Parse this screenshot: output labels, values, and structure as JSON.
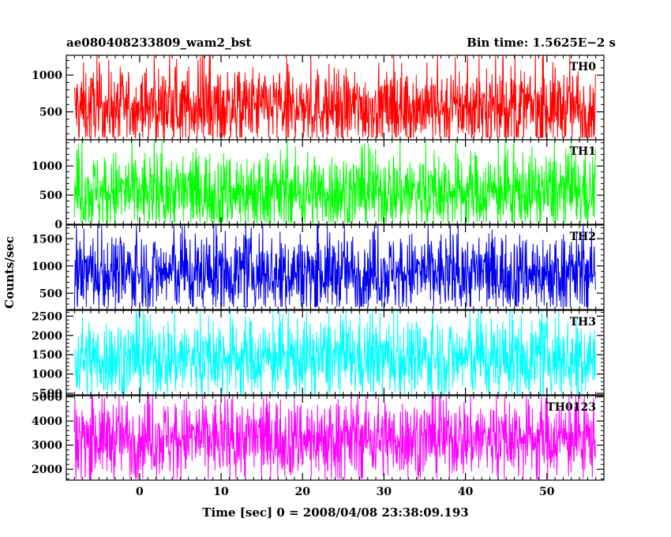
{
  "chart_data": {
    "type": "line",
    "title_left": "ae080408233809_wam2_bst",
    "title_right": "Bin time: 1.5625E−2 s",
    "xlabel": "Time [sec] 0 = 2008/04/08 23:38:09.193",
    "ylabel": "Counts/sec",
    "xlim": [
      -9,
      57
    ],
    "x_data_range": [
      -8,
      56
    ],
    "x_ticks": [
      0,
      10,
      20,
      30,
      40,
      50
    ],
    "grid": false,
    "panels": [
      {
        "label": "TH0",
        "color": "#ff0000",
        "ylim": [
          120,
          1270
        ],
        "y_ticks": [
          500,
          1000
        ],
        "y_min_ticks": [
          100,
          200,
          300,
          400,
          600,
          700,
          800,
          900,
          1100,
          1200
        ],
        "series": {
          "name": "TH0",
          "mean": 560,
          "min": 150,
          "max": 1270
        }
      },
      {
        "label": "TH1",
        "color": "#00ff00",
        "ylim": [
          0,
          1450
        ],
        "y_ticks": [
          0,
          500,
          1000
        ],
        "y_min_ticks": [
          100,
          200,
          300,
          400,
          600,
          700,
          800,
          900,
          1100,
          1200,
          1300,
          1400
        ],
        "series": {
          "name": "TH1",
          "mean": 560,
          "min": 30,
          "max": 1450
        }
      },
      {
        "label": "TH2",
        "color": "#0000ee",
        "ylim": [
          200,
          1750
        ],
        "y_ticks": [
          500,
          1000,
          1500
        ],
        "y_min_ticks": [
          300,
          400,
          600,
          700,
          800,
          900,
          1100,
          1200,
          1300,
          1400,
          1600,
          1700
        ],
        "series": {
          "name": "TH2",
          "mean": 880,
          "min": 250,
          "max": 1750
        }
      },
      {
        "label": "TH3",
        "color": "#00ffff",
        "ylim": [
          460,
          2650
        ],
        "y_ticks": [
          500,
          1000,
          1500,
          2000,
          2500
        ],
        "y_min_ticks": [
          600,
          700,
          800,
          900,
          1100,
          1200,
          1300,
          1400,
          1600,
          1700,
          1800,
          1900,
          2100,
          2200,
          2300,
          2400,
          2600
        ],
        "series": {
          "name": "TH3",
          "mean": 1420,
          "min": 480,
          "max": 2650
        }
      },
      {
        "label": "TH0123",
        "color": "#ff00ff",
        "ylim": [
          1550,
          5050
        ],
        "y_ticks": [
          2000,
          3000,
          4000,
          5000
        ],
        "y_min_ticks": [
          1600,
          1800,
          2200,
          2400,
          2600,
          2800,
          3200,
          3400,
          3600,
          3800,
          4200,
          4400,
          4600,
          4800
        ],
        "series": {
          "name": "TH0123",
          "mean": 3300,
          "min": 1600,
          "max": 5050
        }
      }
    ]
  }
}
